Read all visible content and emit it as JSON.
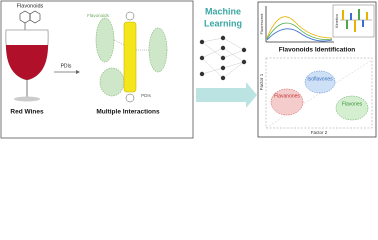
{
  "left": {
    "flavonoids_label": "Flavonoids",
    "pdis_arrow_label": "PDIs",
    "complex_flavonoids": "Flavonoids",
    "complex_pdis": "PDIs",
    "wine_label": "Red Wines",
    "interactions_label": "Multiple Interactions"
  },
  "center": {
    "title_line1": "Machine",
    "title_line2": "Learning"
  },
  "right": {
    "fluorescent_axis": "Fluorescent",
    "kinetics_label": "Kinetics",
    "identification_label": "Flavonoids Identification",
    "factor1": "Factor 1",
    "factor2": "Factor 2",
    "clusters": [
      "Flavanones",
      "Isoflavones",
      "Flavones"
    ]
  }
}
